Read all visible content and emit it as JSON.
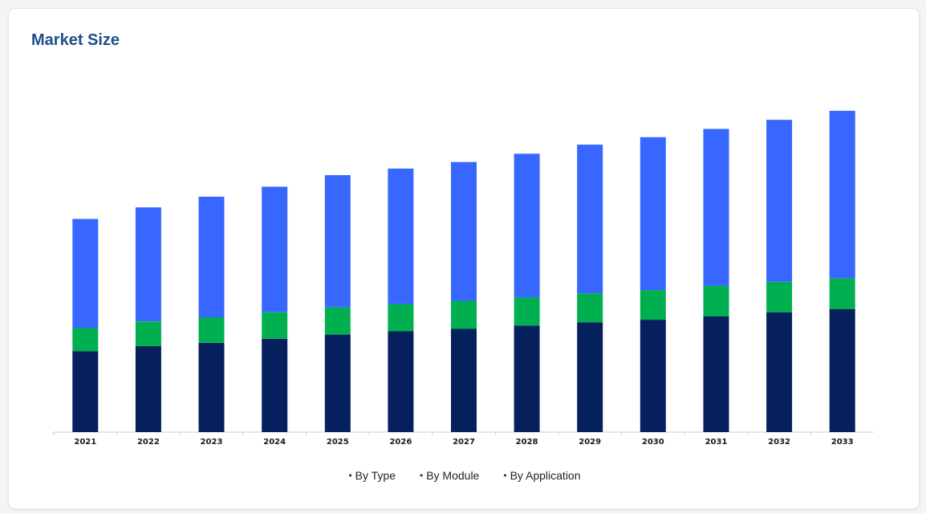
{
  "card": {
    "title": "Market Size"
  },
  "colors": {
    "by_type": "#3767ff",
    "by_module": "#00b050",
    "by_application": "#06205e",
    "axis": "#cccccc",
    "title": "#1f4e8c"
  },
  "legend": {
    "items": [
      {
        "label": "By Type",
        "color": "#3767ff"
      },
      {
        "label": "By Module",
        "color": "#00b050"
      },
      {
        "label": "By Application",
        "color": "#06205e"
      }
    ]
  },
  "chart_data": {
    "type": "bar",
    "stacked": true,
    "title": "Market Size",
    "xlabel": "",
    "ylabel": "",
    "categories": [
      "2021",
      "2022",
      "2023",
      "2024",
      "2025",
      "2026",
      "2027",
      "2028",
      "2029",
      "2030",
      "2031",
      "2032",
      "2033"
    ],
    "series": [
      {
        "name": "By Application",
        "color": "#06205e",
        "values": [
          98,
          104,
          108,
          113,
          118,
          122,
          125,
          129,
          133,
          136,
          140,
          145,
          149
        ]
      },
      {
        "name": "By Module",
        "color": "#00b050",
        "values": [
          28,
          30,
          31,
          32,
          33,
          33,
          34,
          34,
          35,
          36,
          37,
          37,
          37
        ]
      },
      {
        "name": "By Type",
        "color": "#3767ff",
        "values": [
          132,
          138,
          146,
          152,
          160,
          164,
          168,
          174,
          180,
          185,
          190,
          196,
          203
        ]
      }
    ],
    "ylim": [
      0,
      420
    ],
    "grid": false,
    "legend_position": "bottom"
  }
}
